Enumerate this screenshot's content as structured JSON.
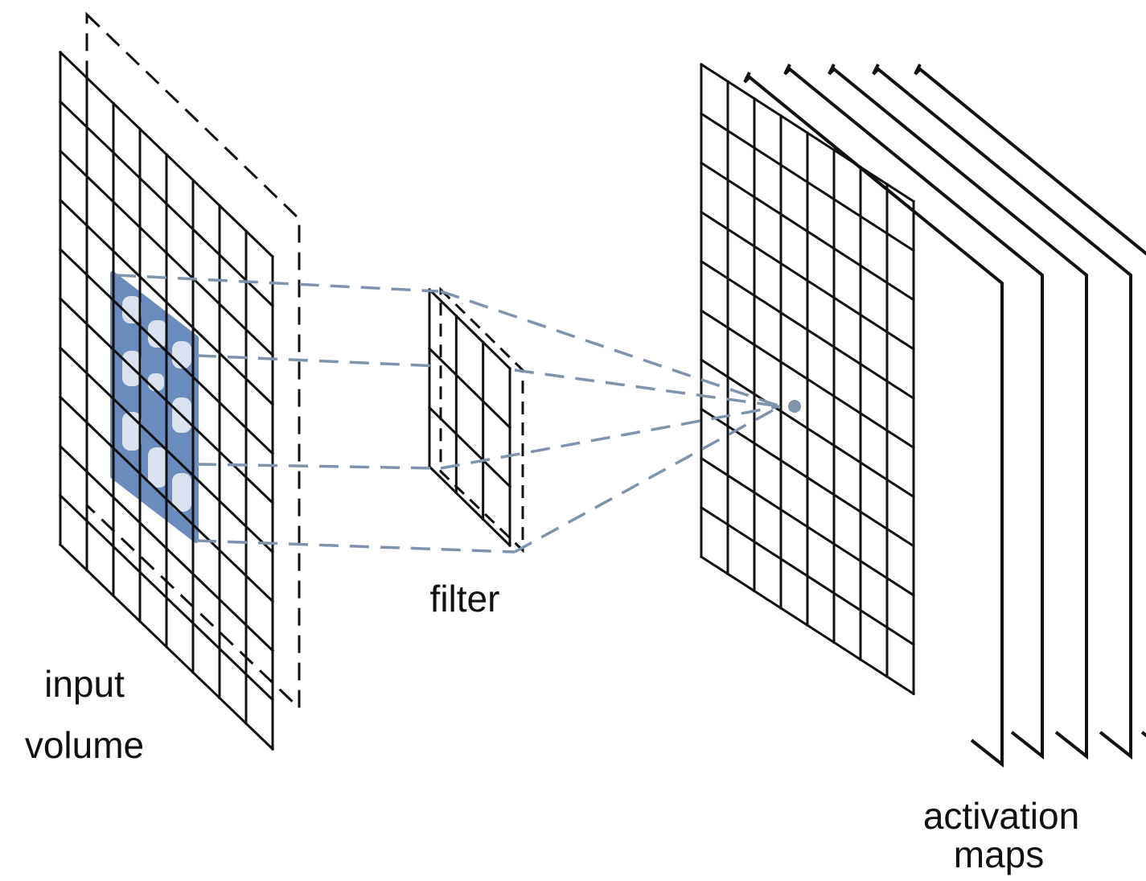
{
  "labels": {
    "input_line1": "input",
    "input_line2": "volume",
    "filter": "filter",
    "activation_line1": "activation",
    "activation_line2": "maps"
  },
  "colors": {
    "grid": "#111111",
    "highlight": "#6a8bbd",
    "connector": "#7f93ad"
  }
}
